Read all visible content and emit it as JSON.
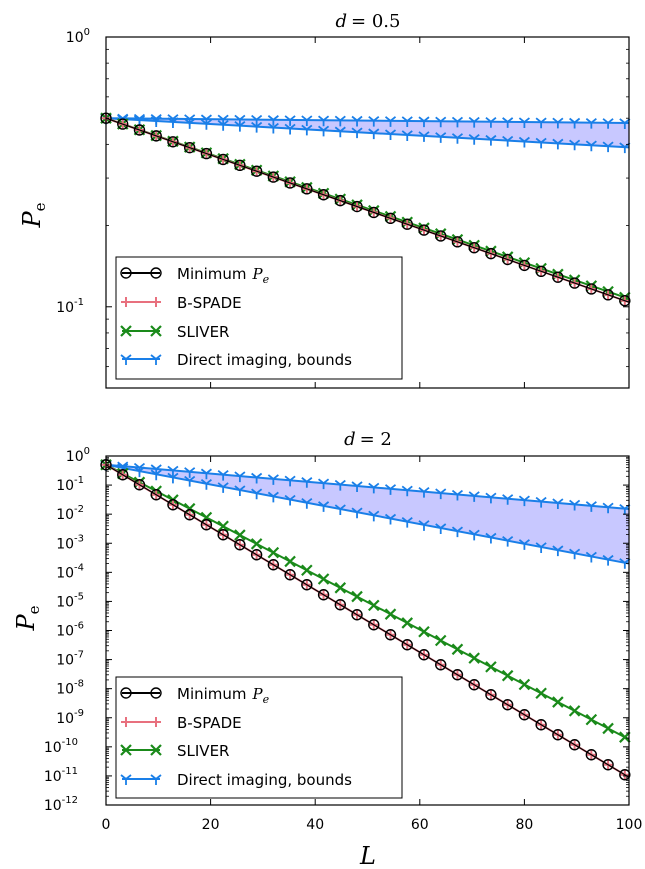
{
  "chart_data": [
    {
      "type": "line",
      "title": "d = 0.5",
      "title_var": "d",
      "title_eq": "= 0.5",
      "xlabel": "",
      "ylabel_var": "P",
      "ylabel_sub": "e",
      "xlim": [
        0,
        100
      ],
      "ylim": [
        0.05,
        1
      ],
      "yscale": "log",
      "yticks": [
        {
          "base": "10",
          "exp": "0",
          "value": 1
        },
        {
          "base": "10",
          "exp": "-1",
          "value": 0.1
        }
      ],
      "xticks": [],
      "legend": "lower-left",
      "shade": {
        "color": "#c8c8ff",
        "between": [
          "Direct imaging, upper bound",
          "Direct imaging, lower bound"
        ]
      },
      "series": [
        {
          "key": "min",
          "marker": "circle",
          "color": "#000000",
          "points": [
            [
              0,
              0.5
            ],
            [
              100,
              0.104
            ]
          ]
        },
        {
          "key": "bspade",
          "marker": "plus",
          "color": "#e8707e",
          "points": [
            [
              0,
              0.5
            ],
            [
              100,
              0.104
            ]
          ]
        },
        {
          "key": "sliver",
          "marker": "x",
          "color": "#1a8a1a",
          "points": [
            [
              0,
              0.5
            ],
            [
              100,
              0.107
            ]
          ]
        },
        {
          "key": "direct_upper",
          "marker": "tri",
          "color": "#1a7fe8",
          "points": [
            [
              0,
              0.5
            ],
            [
              100,
              0.48
            ]
          ]
        },
        {
          "key": "direct_lower",
          "marker": "tri",
          "color": "#1a7fe8",
          "points": [
            [
              0,
              0.5
            ],
            [
              100,
              0.39
            ]
          ]
        }
      ]
    },
    {
      "type": "line",
      "title": "d = 2",
      "title_var": "d",
      "title_eq": "= 2",
      "xlabel_var": "L",
      "ylabel_var": "P",
      "ylabel_sub": "e",
      "xlim": [
        0,
        100
      ],
      "ylim": [
        1e-12,
        1
      ],
      "yscale": "log",
      "yticks": [
        {
          "base": "10",
          "exp": "0",
          "value": 1
        },
        {
          "base": "10",
          "exp": "-1",
          "value": 0.1
        },
        {
          "base": "10",
          "exp": "-2",
          "value": 0.01
        },
        {
          "base": "10",
          "exp": "-3",
          "value": 0.001
        },
        {
          "base": "10",
          "exp": "-4",
          "value": 0.0001
        },
        {
          "base": "10",
          "exp": "-5",
          "value": 1e-05
        },
        {
          "base": "10",
          "exp": "-6",
          "value": 1e-06
        },
        {
          "base": "10",
          "exp": "-7",
          "value": 1e-07
        },
        {
          "base": "10",
          "exp": "-8",
          "value": 1e-08
        },
        {
          "base": "10",
          "exp": "-9",
          "value": 1e-09
        },
        {
          "base": "10",
          "exp": "-10",
          "value": 1e-10
        },
        {
          "base": "10",
          "exp": "-11",
          "value": 1e-11
        },
        {
          "base": "10",
          "exp": "-12",
          "value": 1e-12
        }
      ],
      "xticks": [
        "0",
        "20",
        "40",
        "60",
        "80",
        "100"
      ],
      "legend": "lower-left",
      "shade": {
        "color": "#c8c8ff",
        "between": [
          "Direct imaging, upper bound",
          "Direct imaging, lower bound"
        ]
      },
      "series": [
        {
          "key": "min",
          "marker": "circle",
          "color": "#000000",
          "points": [
            [
              0,
              0.5
            ],
            [
              100,
              9e-12
            ]
          ]
        },
        {
          "key": "bspade",
          "marker": "plus",
          "color": "#e8707e",
          "points": [
            [
              0,
              0.5
            ],
            [
              100,
              9e-12
            ]
          ]
        },
        {
          "key": "sliver",
          "marker": "x",
          "color": "#1a8a1a",
          "points": [
            [
              0,
              0.5
            ],
            [
              100,
              1.8e-10
            ]
          ]
        },
        {
          "key": "direct_upper",
          "marker": "tri",
          "color": "#1a7fe8",
          "points": [
            [
              0,
              0.5
            ],
            [
              100,
              0.015
            ]
          ]
        },
        {
          "key": "direct_lower",
          "marker": "tri",
          "color": "#1a7fe8",
          "points": [
            [
              0,
              0.5
            ],
            [
              100,
              0.0002
            ]
          ]
        }
      ]
    }
  ],
  "legend": {
    "min_label": "Minimum",
    "min_var": "P",
    "min_sub": "e",
    "bspade_label": "B-SPADE",
    "sliver_label": "SLIVER",
    "direct_label": "Direct imaging, bounds"
  }
}
